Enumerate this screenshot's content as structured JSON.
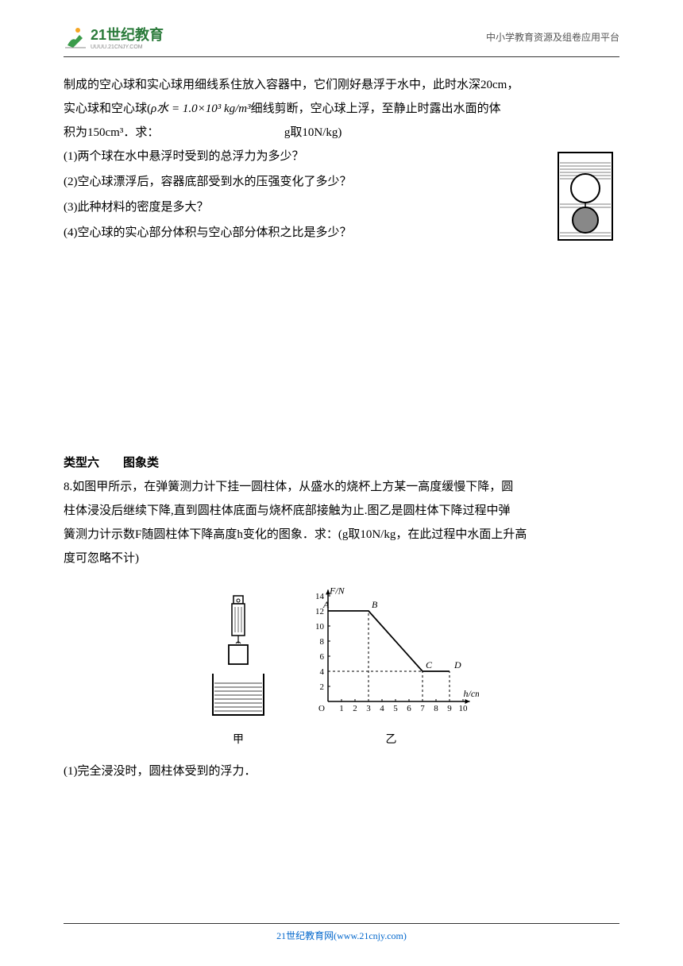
{
  "header": {
    "logo_main": "21世纪教育",
    "logo_sub": "UUUU.21CNJY.COM",
    "right_text": "中小学教育资源及组卷应用平台"
  },
  "problem7": {
    "para1": "制成的空心球和实心球用细线系住放入容器中，它们刚好悬浮于水中，此时水深20cm，",
    "para2_left": "实心球和空心球(",
    "para2_formula": "ρ水 = 1.0×10³ kg/m³",
    "para2_right": "细线剪断，空心球上浮，至静止时露出水面的体",
    "para3_left": "积为150cm³．求：",
    "para3_right": "g取10N/kg)",
    "q1": "(1)两个球在水中悬浮时受到的总浮力为多少？",
    "q2": "(2)空心球漂浮后，容器底部受到水的压强变化了多少？",
    "q3": "(3)此种材料的密度是多大？",
    "q4": "(4)空心球的实心部分体积与空心部分体积之比是多少？"
  },
  "section6": {
    "title": "类型六　　图象类",
    "q8_line1": "8.如图甲所示，在弹簧测力计下挂一圆柱体，从盛水的烧杯上方某一高度缓慢下降，圆",
    "q8_line2": "柱体浸没后继续下降,直到圆柱体底面与烧杯底部接触为止.图乙是圆柱体下降过程中弹",
    "q8_line3": "簧测力计示数F随圆柱体下降高度h变化的图象．求：(g取10N/kg，在此过程中水面上升高",
    "q8_line4": "度可忽略不计)",
    "q8_sub1": "(1)完全浸没时，圆柱体受到的浮力．",
    "jia_label": "甲",
    "yi_label": "乙"
  },
  "chart": {
    "y_label": "F/N",
    "x_label": "h/cm",
    "y_ticks": [
      "2",
      "4",
      "6",
      "8",
      "10",
      "12",
      "14"
    ],
    "x_ticks": [
      "1",
      "2",
      "3",
      "4",
      "5",
      "6",
      "7",
      "8",
      "9",
      "10"
    ],
    "point_A": "A",
    "point_B": "B",
    "point_C": "C",
    "point_D": "D",
    "data_points": [
      [
        0,
        12
      ],
      [
        3,
        12
      ],
      [
        7,
        4
      ],
      [
        9,
        4
      ]
    ],
    "origin": "O",
    "line_color": "#000000",
    "axis_color": "#000000",
    "grid_color": "#999999",
    "background": "#ffffff"
  },
  "footer": {
    "text": "21世纪教育网(www.21cnjy.com)"
  }
}
